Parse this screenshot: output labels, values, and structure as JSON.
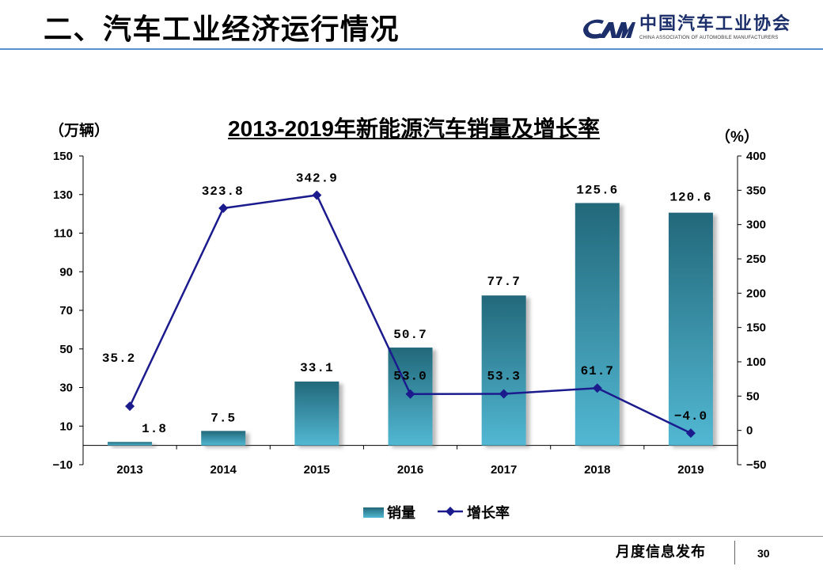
{
  "slide": {
    "title": "二、汽车工业经济运行情况",
    "logo": {
      "name_cn": "中国汽车工业协会",
      "name_en": "CHINA ASSOCIATION OF AUTOMOBILE MANUFACTURERS"
    },
    "footer": {
      "label": "月度信息发布",
      "page_number": "30"
    },
    "colors": {
      "header_rule": "#5a8fd0",
      "logo": "#1c2f6b"
    }
  },
  "chart_data": {
    "type": "bar",
    "title": "2013-2019年新能源汽车销量及增长率",
    "categories": [
      "2013",
      "2014",
      "2015",
      "2016",
      "2017",
      "2018",
      "2019"
    ],
    "series": [
      {
        "name": "销量",
        "type": "bar",
        "axis": "left",
        "values": [
          1.8,
          7.5,
          33.1,
          50.7,
          77.7,
          125.6,
          120.6
        ],
        "labels": [
          "1.8",
          "7.5",
          "33.1",
          "50.7",
          "77.7",
          "125.6",
          "120.6"
        ],
        "color_top": "#22687a",
        "color_bottom": "#52b8d3"
      },
      {
        "name": "增长率",
        "type": "line",
        "axis": "right",
        "marker": "diamond",
        "values": [
          35.2,
          323.8,
          342.9,
          53.0,
          53.3,
          61.7,
          -4.0
        ],
        "labels": [
          "35.2",
          "323.8",
          "342.9",
          "53.0",
          "53.3",
          "61.7",
          "−4.0"
        ],
        "color": "#1b1b8e"
      }
    ],
    "y_left": {
      "label": "（万辆）",
      "range": [
        -10,
        150
      ],
      "ticks": [
        150,
        130,
        110,
        90,
        70,
        50,
        30,
        10,
        -10
      ],
      "tick_labels": [
        "150",
        "130",
        "110",
        "90",
        "70",
        "50",
        "30",
        "10",
        "−10"
      ]
    },
    "y_right": {
      "label": "（%）",
      "range": [
        -50,
        400
      ],
      "ticks": [
        400,
        350,
        300,
        250,
        200,
        150,
        100,
        50,
        0,
        -50
      ],
      "tick_labels": [
        "400",
        "350",
        "300",
        "250",
        "200",
        "150",
        "100",
        "50",
        "0",
        "−50"
      ]
    },
    "legend": {
      "position": "bottom"
    },
    "grid": false
  }
}
